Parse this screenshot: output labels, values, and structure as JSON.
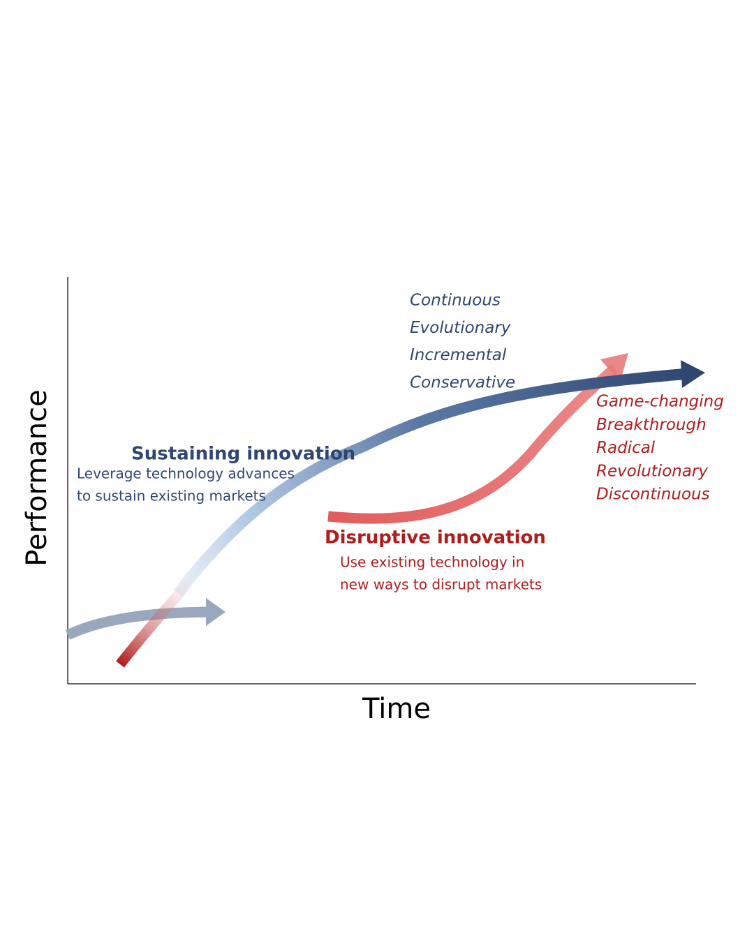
{
  "axes": {
    "y_label": "Performance",
    "x_label": "Time"
  },
  "sustaining": {
    "title": "Sustaining innovation",
    "description": [
      "Leverage technology advances",
      "to sustain existing markets"
    ],
    "traits": [
      "Continuous",
      "Evolutionary",
      "Incremental",
      "Conservative"
    ]
  },
  "disruptive": {
    "title": "Disruptive innovation",
    "description": [
      "Use existing technology in",
      "new ways to disrupt markets"
    ],
    "traits": [
      "Game-changing",
      "Breakthrough",
      "Radical",
      "Revolutionary",
      "Discontinuous"
    ]
  }
}
